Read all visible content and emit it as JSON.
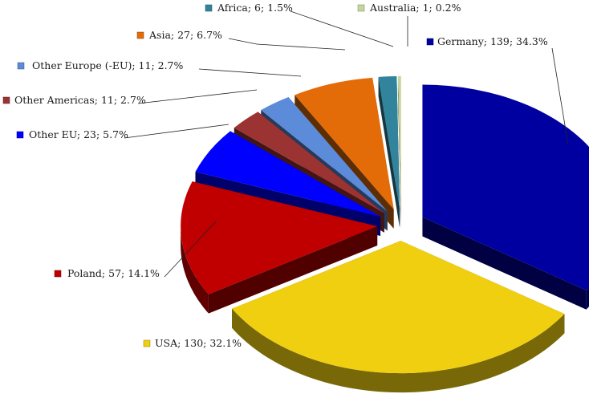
{
  "chart_data": {
    "type": "pie",
    "title": "",
    "style": "3d-exploded",
    "legend": "none",
    "slices": [
      {
        "name": "Germany",
        "value": 139,
        "percent": 34.3,
        "label": "Germany; 139; 34.3%",
        "color": "#0000A0"
      },
      {
        "name": "USA",
        "value": 130,
        "percent": 32.1,
        "label": "USA; 130; 32.1%",
        "color": "#F0CF10"
      },
      {
        "name": "Poland",
        "value": 57,
        "percent": 14.1,
        "label": "Poland; 57; 14.1%",
        "color": "#C00000"
      },
      {
        "name": "Other EU",
        "value": 23,
        "percent": 5.7,
        "label": "Other EU; 23; 5.7%",
        "color": "#0000FF"
      },
      {
        "name": "Other Americas",
        "value": 11,
        "percent": 2.7,
        "label": "Other Americas; 11; 2.7%",
        "color": "#9B3333"
      },
      {
        "name": "Other Europe (-EU)",
        "value": 11,
        "percent": 2.7,
        "label": "Other Europe (-EU); 11; 2.7%",
        "color": "#5B8BD9"
      },
      {
        "name": "Asia",
        "value": 27,
        "percent": 6.7,
        "label": "Asia; 27; 6.7%",
        "color": "#E36C09"
      },
      {
        "name": "Africa",
        "value": 6,
        "percent": 1.5,
        "label": "Africa; 6; 1.5%",
        "color": "#31849B"
      },
      {
        "name": "Australia",
        "value": 1,
        "percent": 0.2,
        "label": "Australia; 1; 0.2%",
        "color": "#C4D79B"
      }
    ]
  }
}
